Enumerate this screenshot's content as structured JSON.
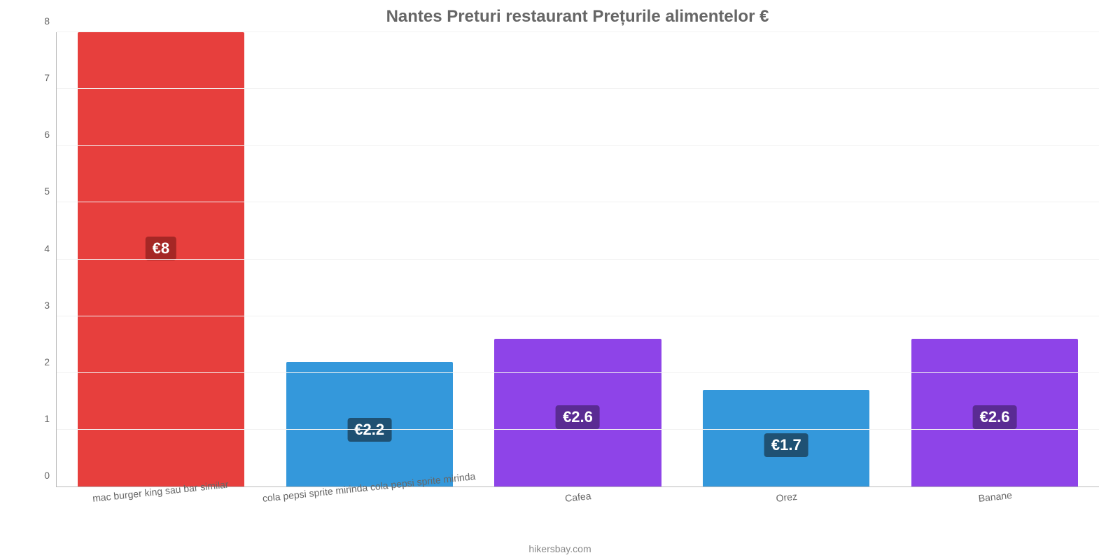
{
  "chart": {
    "type": "bar",
    "title": "Nantes Preturi restaurant Prețurile alimentelor €",
    "title_fontsize": 24,
    "title_color": "#666666",
    "background_color": "#ffffff",
    "grid_color": "#f2f2f2",
    "axis_color": "#bbbbbb",
    "ylim": [
      0,
      8
    ],
    "ytick_step": 1,
    "tick_color": "#666666",
    "tick_fontsize": 14,
    "bar_width_pct": 80,
    "label_fontsize": 22,
    "label_bg": {
      "#e73f3d": "#a52725",
      "#3498db": "#1f5173",
      "#8e44e8": "#5a2b93"
    },
    "categories": [
      "mac burger king sau bar similar",
      "cola pepsi sprite mirinda cola pepsi sprite mirinda",
      "Cafea",
      "Orez",
      "Banane"
    ],
    "values": [
      8,
      2.2,
      2.6,
      1.7,
      2.6
    ],
    "value_labels": [
      "€8",
      "€2.2",
      "€2.6",
      "€1.7",
      "€2.6"
    ],
    "bar_colors": [
      "#e73f3d",
      "#3498db",
      "#8e44e8",
      "#3498db",
      "#8e44e8"
    ],
    "x_label_rotation_deg": -6,
    "credit": "hikersbay.com",
    "credit_color": "#888888"
  }
}
